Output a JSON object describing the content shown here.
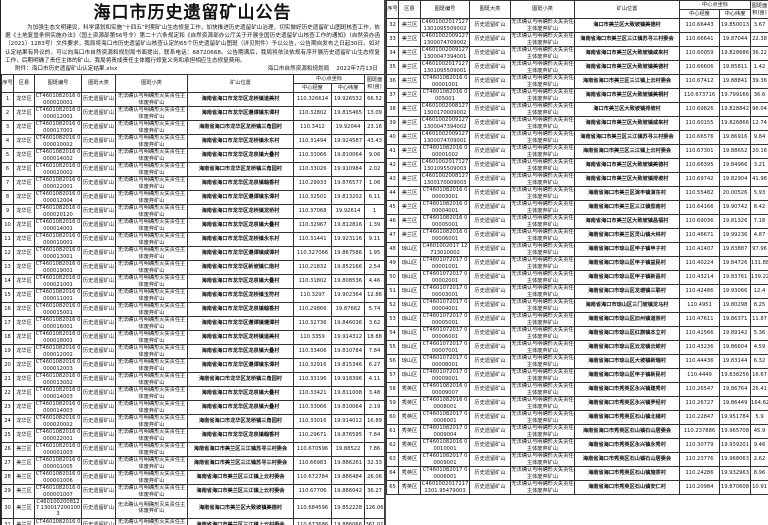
{
  "title": "海口市历史遗留矿山公告",
  "paragraph": "为加强生态文明建设，科学谋划和实施“十四五”时期矿山生态修复工作，加快推进历史遗留矿山治理，切实做好历史遗留矿山图斑核查工作，依据《土地复垦条例实施办法》（国土资源部第56号令）第二十六条规定和《自然资源部办公厅关于开展全国历史遗留矿山核查工作的通知》（自然资办函〔2021〕1283号）文件要求，我局将海口市历史遗留矿山核查认定的65个历史遗留矿山图斑（详见附件）予以公告，公告期自发布之日起30日。如对认定结果有异议的，可以向海口市自然资源和规划局书面提出，联系电话：68720668。公告期满后，我局将依法依规有序开展历史遗留矿山生态修复工作，后期明确了责任主体的矿山，我局将责成责任主体履行修复义务和承担相应生态修复费用。",
  "attachment": "附件：海口市历史遗留矿山认定结果.xlsx",
  "issuer": "海口市自然资源和规划局",
  "date": "2022年7月13日",
  "table": {
    "headers": {
      "no": "序号",
      "district": "区县",
      "code": "图斑编号",
      "type": "图斑大类",
      "subtype": "图斑小类",
      "location": "矿山位置",
      "center": "中心点坐标",
      "lon": "中心经度",
      "lat": "中心纬度",
      "area": "图斑面积(亩)"
    },
    "type_value": "历史遗留矿山",
    "subtype_value": "无法确认与明确形灭失责任主体废弃矿山",
    "rows": [
      [
        "1",
        "龙华区",
        "CT4601082016 0000010001",
        "海南省海口市龙华区龙桥镇道美村",
        "110.326614",
        "19.926532",
        "66.52"
      ],
      [
        "2",
        "龙华区",
        "CT4601082016 0000012001",
        "海南省海口市龙华区遵谭镇东谭村",
        "110.32802",
        "19.815465",
        "13.09"
      ],
      [
        "3",
        "龙华区",
        "CT4601082016 0000017001",
        "海南省海口市龙华区龙桥镇三角园村",
        "110.3412",
        "19.92044",
        "23.16"
      ],
      [
        "4",
        "龙华区",
        "CT4601082016 0000010002",
        "海南省海口市龙华区龙桥镇永东村",
        "110.31494",
        "19.924587",
        "43.43"
      ],
      [
        "5",
        "龙华区",
        "CT4601082016 0000014002",
        "海南省海口市龙华区龙泉镇大叠村",
        "110.33066",
        "19.810064",
        "9.06"
      ],
      [
        "6",
        "龙华区",
        "CT4601082016 0000020002",
        "海南省海口市龙华区龙桥镇三角园村",
        "110.33026",
        "19.910984",
        "2.02"
      ],
      [
        "7",
        "龙华区",
        "CT4601082016 0000022001",
        "海南省海口市龙华区龙泉镇翰香村",
        "110.29933",
        "19.876577",
        "1.06"
      ],
      [
        "8",
        "龙华区",
        "CT4601082016 0000012004",
        "海南省海口市龙华区遵谭镇东谭村",
        "110.32501",
        "19.813202",
        "6.11"
      ],
      [
        "9",
        "龙华区",
        "CT4601082016 0000020120",
        "海南省海口市龙华区龙桥镇龙桥村",
        "110.37068",
        "19.92614",
        "1"
      ],
      [
        "10",
        "龙华区",
        "CT4601082016 0000014001",
        "海南省海口市龙华区龙泉镇大叠村",
        "110.32967",
        "19.812816",
        "1.39"
      ],
      [
        "11",
        "龙华区",
        "CT4601082016 0000010001",
        "海南省海口市龙华区龙桥镇永东村",
        "110.31441",
        "19.923116",
        "9.11"
      ],
      [
        "12",
        "龙华区",
        "CT4601082016 0000013001",
        "海南省海口市龙华区遵谭镇咸谭村",
        "110.327066",
        "19.867586",
        "1.95"
      ],
      [
        "13",
        "龙华区",
        "CT4601082016 0000019001",
        "海南省海口市龙华区新坡镇仁南村",
        "110.21832",
        "19.852166",
        "2.54"
      ],
      [
        "14",
        "龙华区",
        "CT4601082016 0000021001",
        "海南省海口市龙华区龙泉镇大叠村",
        "110.31802",
        "19.808536",
        "4.46"
      ],
      [
        "15",
        "龙华区",
        "CT4601082016 0000011001",
        "海南省海口市龙华区龙桥镇玉符村",
        "110.3297",
        "19.902364",
        "12.86"
      ],
      [
        "16",
        "龙华区",
        "CT4601082016 0000015001",
        "海南省海口市龙华区龙泉镇翰香村",
        "110.29866",
        "19.87662",
        "5.74"
      ],
      [
        "17",
        "龙华区",
        "CT4601082016 0000016001",
        "海南省海口市龙华区遵谭镇遵谭村",
        "110.32736",
        "19.846036",
        "3.62"
      ],
      [
        "18",
        "龙华区",
        "CT4601082016 0000018001",
        "海南省海口市龙华区龙桥镇道美村",
        "110.3359",
        "19.914312",
        "18.88"
      ],
      [
        "19",
        "龙华区",
        "CT4601082016 0000012002",
        "海南省海口市龙华区龙泉镇大叠村",
        "110.33406",
        "19.810784",
        "7.84"
      ],
      [
        "20",
        "龙华区",
        "CT4601082016 0000012003",
        "海南省海口市龙华区遵谭镇东谭村",
        "110.32916",
        "19.815346",
        "6.27"
      ],
      [
        "21",
        "龙华区",
        "CT4601082016 0000013002",
        "海南省海口市龙华区龙桥镇三角园村",
        "110.33196",
        "19.918396",
        "4.11"
      ],
      [
        "22",
        "龙华区",
        "CT4601082016 0000014003",
        "海南省海口市龙华区龙泉镇大叠村",
        "110.33421",
        "19.811008",
        "3.48"
      ],
      [
        "23",
        "龙华区",
        "CT4601082016 0000014003",
        "海南省海口市龙华区龙泉镇大叠村",
        "110.33066",
        "19.810064",
        "2.19"
      ],
      [
        "24",
        "龙华区",
        "CT4601082016 0000020002",
        "海南省海口市龙华区龙桥镇三角园村",
        "110.33016",
        "19.914012",
        "16.89"
      ],
      [
        "25",
        "龙华区",
        "CT4601082016 0000022001",
        "海南省海口市龙华区龙泉镇翰香村",
        "110.29671",
        "19.876595",
        "7.84"
      ],
      [
        "26",
        "美兰区",
        "CT4601082016 0000001003",
        "海南省海口市美兰区三江镇苏寻三村委会",
        "110.670596",
        "19.88522",
        "7.86"
      ],
      [
        "27",
        "美兰区",
        "CT4601082016 0000001005",
        "海南省海口市美兰区三江镇苏寻三村委会",
        "110.66983",
        "19.886261",
        "32.33"
      ],
      [
        "28",
        "美兰区",
        "CT4601082016 0000001006",
        "海南省海口市美兰区三江镇上云村委会",
        "110.672784",
        "19.886484",
        "26.06"
      ],
      [
        "29",
        "美兰区",
        "CT4601082016 0000001007",
        "海南省海口市美兰区三江镇上云村委会",
        "110.67706",
        "19.886042",
        "36.27"
      ],
      [
        "30",
        "美兰区",
        "C4601002008127 1300172001003",
        "海南省海口市美兰区大致坡镇美德村",
        "110.684596",
        "19.852228",
        "126.06"
      ],
      [
        "31",
        "美兰区",
        "CT4601082016 0000001010",
        "海南省海口市美兰区三江镇上云村委会",
        "110.673686",
        "19.886066",
        "361.01"
      ],
      [
        "32",
        "美兰区",
        "C4601002017127 1301095509002",
        "海口市美兰区大致坡镇美德村",
        "110.66443",
        "19.850013",
        "3.67"
      ],
      [
        "33",
        "美兰区",
        "C4601002009127 1300074709002",
        "海南省海口市美兰区三江镇苏寻三村委会",
        "110.66641",
        "19.87044",
        "22.38"
      ],
      [
        "34",
        "美兰区",
        "C4601002009127 1300047394001",
        "海南省海口市美兰区大致坡镇咸来村",
        "110.60059",
        "19.828686",
        "36.22"
      ],
      [
        "35",
        "美兰区",
        "C4601002017127 1301095509001",
        "海南省海口市美兰区大致坡镇美德村",
        "110.66606",
        "19.85811",
        "1.42"
      ],
      [
        "36",
        "美兰区",
        "CT4601082016 000001001",
        "海南省海口市美兰区三江镇上云村委会",
        "110.67412",
        "19.88841",
        "39.36"
      ],
      [
        "37",
        "美兰区",
        "CT4601082016 0005001",
        "海南省海口市美兰区大致坡镇美桐村",
        "110.673716",
        "19.799166",
        "36.6"
      ],
      [
        "38",
        "美兰区",
        "C4601002008127 1300170009002",
        "海口市美兰区大致坡镇排坡村",
        "110.69826",
        "19.828842",
        "96.04"
      ],
      [
        "39",
        "美兰区",
        "C4601002009127 1300047394002",
        "海南省海口市美兰区大致坡镇咸来村",
        "110.60155",
        "19.826866",
        "12.74"
      ],
      [
        "40",
        "美兰区",
        "C4601002009127 1300074709001",
        "海南省海口市美兰区三江镇苏寻三村委会",
        "110.66576",
        "19.86916",
        "9.84"
      ],
      [
        "41",
        "美兰区",
        "CT4601082016 000001002",
        "海南省海口市美兰区三江镇上云村委会",
        "110.67301",
        "19.88652",
        "20.16"
      ],
      [
        "42",
        "美兰区",
        "C4601002017127 1301095509003",
        "海南省海口市美兰区大致坡镇美德村",
        "110.66395",
        "19.84966",
        "3.21"
      ],
      [
        "43",
        "美兰区",
        "C4601002008127 1300170009003",
        "海南省海口市美兰区大致坡镇排坡村",
        "110.69742",
        "19.82904",
        "41.98"
      ],
      [
        "44",
        "美兰区",
        "CT4601082016 000003001",
        "海南省海口市美兰区演丰镇演东村",
        "110.55482",
        "20.00526",
        "5.93"
      ],
      [
        "45",
        "美兰区",
        "CT4601082016 000004001",
        "海南省海口市美兰区三江镇茄南村",
        "110.64166",
        "19.90742",
        "8.42"
      ],
      [
        "46",
        "美兰区",
        "CT4601082016 000005001",
        "海南省海口市美兰区大致坡镇昌福村",
        "110.69036",
        "19.81326",
        "7.18"
      ],
      [
        "47",
        "美兰区",
        "CT4601082016 000006001",
        "海南省海口市美兰区灵山镇大林村",
        "110.46671",
        "19.99236",
        "4.87"
      ],
      [
        "48",
        "琼山区",
        "C4601002017 12713010002",
        "海南省海口市琼山区甲子镇甲子村",
        "110.41407",
        "19.83887",
        "97.96"
      ],
      [
        "49",
        "琼山区",
        "CT4601072017 000001001",
        "海南省海口市琼山区甲子镇益民村",
        "110.40224",
        "19.84726",
        "131.88"
      ],
      [
        "50",
        "琼山区",
        "CT4601072017 000002001",
        "海南省海口市琼山区甲子镇新昌村",
        "110.43214",
        "19.83761",
        "139.22"
      ],
      [
        "51",
        "琼山区",
        "CT4601072017 000003001",
        "海南省海口市琼山区龙塘镇三联村",
        "110.42486",
        "19.93066",
        "12.4"
      ],
      [
        "52",
        "琼山区",
        "CT4601072017 000004001",
        "海南省海口市琼山区三门坡镇龙马村",
        "110.4951",
        "19.80298",
        "8.25"
      ],
      [
        "53",
        "琼山区",
        "CT4601072017 000005001",
        "海南省海口市琼山区旧州镇道崇村",
        "110.47611",
        "19.86371",
        "11.87"
      ],
      [
        "54",
        "琼山区",
        "CT4601072017 000006001",
        "海南省海口市琼山区红旗镇本立村",
        "110.41566",
        "19.89142",
        "5.36"
      ],
      [
        "55",
        "琼山区",
        "CT4601072017 000007001",
        "海南省海口市琼山区云龙镇云蛟村",
        "110.43236",
        "19.86604",
        "4.59"
      ],
      [
        "56",
        "琼山区",
        "CT4601072017 000008001",
        "海南省海口市琼山区大坡镇新瑞村",
        "110.44436",
        "19.83144",
        "6.32"
      ],
      [
        "57",
        "琼山区",
        "CT4601072017 000009001",
        "海南省海口市琼山区甲子镇新民村",
        "110.4449",
        "19.838256",
        "16.67"
      ],
      [
        "58",
        "秀英区",
        "CT4601082016 000009007",
        "海南省海口市秀英区永兴镇建秀村",
        "110.26547",
        "19.86764",
        "26.41"
      ],
      [
        "59",
        "秀英区",
        "CT4601082016 00008001",
        "海南省海口市秀英区永兴镇罗经村",
        "110.26727",
        "19.86449",
        "164.62"
      ],
      [
        "60",
        "秀英区",
        "CT4601082017 00006001",
        "海南省海口市秀英区石山镇北铺村",
        "110.22847",
        "19.951784",
        "5.9"
      ],
      [
        "61",
        "秀英区",
        "CT4601082017 00009004",
        "海南省海口市秀英区石山镇石山居委会",
        "110.237886",
        "19.965708",
        "45.9"
      ],
      [
        "62",
        "秀英区",
        "CT4601082016 00010001",
        "海南省海口市秀英区永兴镇永秀村",
        "110.30779",
        "19.939201",
        "9.46"
      ],
      [
        "63",
        "秀英区",
        "CT4601082017 00009001",
        "海南省海口市秀英区石山镇石山居委会",
        "110.23776",
        "19.968063",
        "2.62"
      ],
      [
        "64",
        "秀英区",
        "CT4601082017 00006001",
        "海南省海口市秀英区石山镇施茶村",
        "110.24286",
        "19.932963",
        "8.96"
      ],
      [
        "65",
        "秀英区",
        "C4601002017117 1301.95479003",
        "海南省海口市秀英区石山镇安仁村",
        "110.20984",
        "19.870608",
        "10.91"
      ]
    ]
  }
}
